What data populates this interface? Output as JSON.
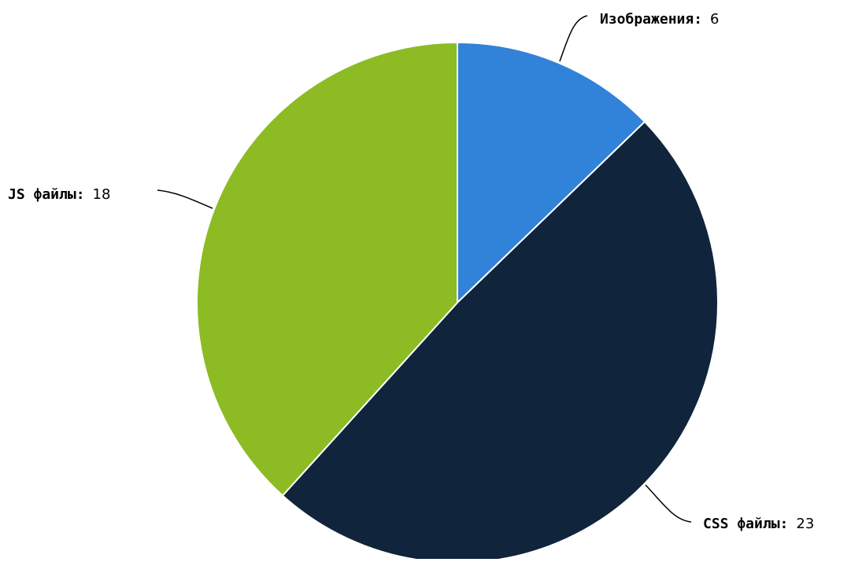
{
  "chart_data": {
    "type": "pie",
    "title": "",
    "slices": [
      {
        "label": "Изображения",
        "value": 6,
        "color": "#3182d9"
      },
      {
        "label": "CSS файлы",
        "value": 23,
        "color": "#10243c"
      },
      {
        "label": "JS файлы",
        "value": 18,
        "color": "#8cbb24"
      }
    ],
    "label_separator": ":",
    "legend": "none"
  }
}
